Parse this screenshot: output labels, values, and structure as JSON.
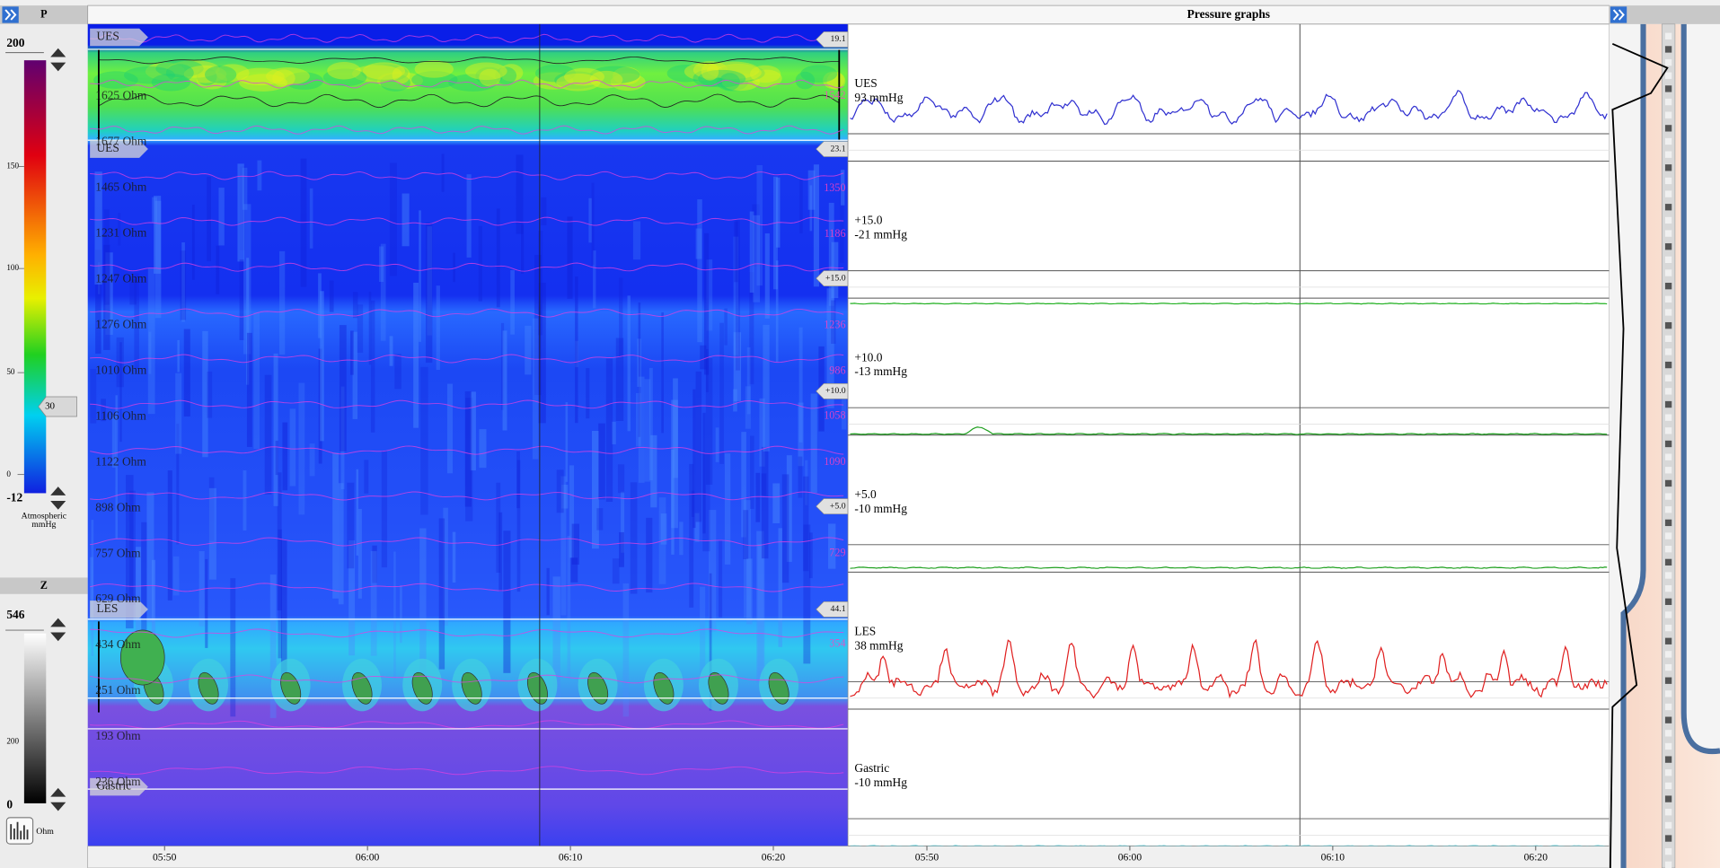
{
  "left_panel": {
    "pressure": {
      "header": "P",
      "max": "200",
      "ticks": [
        "150",
        "100",
        "50",
        "0"
      ],
      "min": "-12",
      "marker": "30",
      "unit": [
        "Atmospheric",
        "mmHg"
      ]
    },
    "impedance": {
      "header": "Z",
      "max": "546",
      "ticks": [
        "200"
      ],
      "min": "0",
      "unit": "Ohm"
    }
  },
  "topography": {
    "region_labels": [
      "UES",
      "UES",
      "LES",
      "Gastric"
    ],
    "impedance_labels": [
      "1625 Ohm",
      "1677 Ohm",
      "1465 Ohm",
      "1231 Ohm",
      "1247 Ohm",
      "1276 Ohm",
      "1010 Ohm",
      "1106 Ohm",
      "1122 Ohm",
      "898 Ohm",
      "757 Ohm",
      "629 Ohm",
      "434 Ohm",
      "251 Ohm",
      "193 Ohm",
      "236 Ohm"
    ],
    "magenta_labels": [
      "1542",
      "1350",
      "1186",
      "1236",
      "986",
      "1058",
      "1090",
      "729",
      "354"
    ],
    "badges": [
      "19.1",
      "23.1",
      "+15.0",
      "+10.0",
      "+5.0",
      "44.1"
    ],
    "time_ticks": [
      "05:50",
      "06:00",
      "06:10",
      "06:20"
    ]
  },
  "pressure_graphs": {
    "title": "Pressure graphs",
    "channels": [
      {
        "name": "UES",
        "value": "93 mmHg"
      },
      {
        "name": "+15.0",
        "value": "-21 mmHg"
      },
      {
        "name": "+10.0",
        "value": "-13 mmHg"
      },
      {
        "name": "+5.0",
        "value": "-10 mmHg"
      },
      {
        "name": "LES",
        "value": "38 mmHg"
      },
      {
        "name": "Gastric",
        "value": "-10 mmHg"
      }
    ],
    "time_ticks": [
      "05:50",
      "06:00",
      "06:10",
      "06:20"
    ]
  }
}
